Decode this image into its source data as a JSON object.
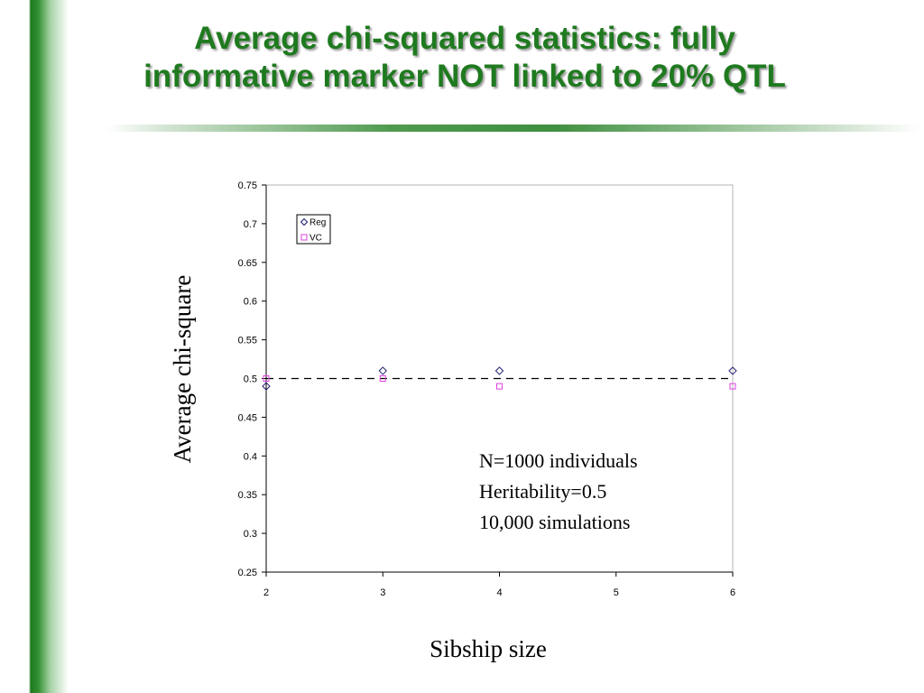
{
  "slide": {
    "title_line1": "Average chi-squared statistics: fully",
    "title_line2": "informative marker NOT linked to 20% QTL",
    "title_color": "#1f7a1f",
    "accent_color": "#2f8f2f"
  },
  "chart_data": {
    "type": "scatter",
    "title": "",
    "xlabel": "Sibship size",
    "ylabel": "Average chi-square",
    "xlim": [
      2,
      6
    ],
    "ylim": [
      0.25,
      0.75
    ],
    "x_ticks": [
      "2",
      "3",
      "4",
      "5",
      "6"
    ],
    "y_ticks": [
      "0.25",
      "0.3",
      "0.35",
      "0.4",
      "0.45",
      "0.5",
      "0.55",
      "0.6",
      "0.65",
      "0.7",
      "0.75"
    ],
    "grid": false,
    "legend_position": "top-left",
    "reference_line": {
      "y": 0.5,
      "style": "dashed"
    },
    "series": [
      {
        "name": "Reg",
        "marker": "diamond",
        "color": "#1a1a6e",
        "x": [
          2,
          3,
          4,
          6
        ],
        "y": [
          0.49,
          0.51,
          0.51,
          0.51
        ]
      },
      {
        "name": "VC",
        "marker": "square",
        "color": "#e040e0",
        "x": [
          2,
          3,
          4,
          6
        ],
        "y": [
          0.5,
          0.5,
          0.49,
          0.49
        ]
      }
    ],
    "annotations": [
      "N=1000 individuals",
      "Heritability=0.5",
      "10,000 simulations"
    ]
  }
}
